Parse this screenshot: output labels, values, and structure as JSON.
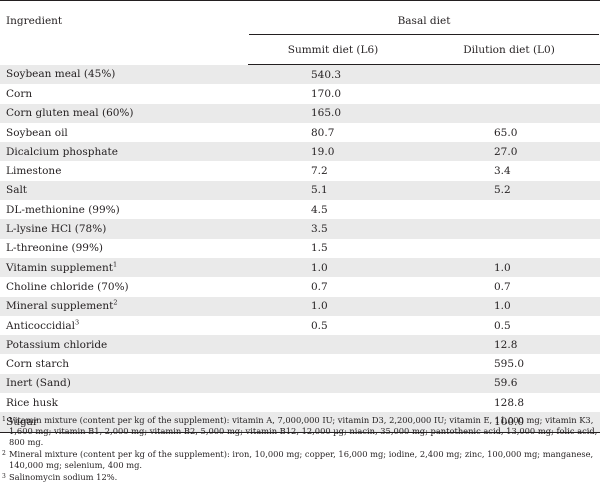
{
  "header": {
    "ingredient": "Ingredient",
    "group": "Basal diet",
    "col_l6": "Summit diet (L6)",
    "col_l0": "Dilution diet (L0)"
  },
  "rows": [
    {
      "ingredient": "Soybean meal (45%)",
      "sup": "",
      "l6": "540.3",
      "l0": ""
    },
    {
      "ingredient": "Corn",
      "sup": "",
      "l6": "170.0",
      "l0": ""
    },
    {
      "ingredient": "Corn gluten meal (60%)",
      "sup": "",
      "l6": "165.0",
      "l0": ""
    },
    {
      "ingredient": "Soybean oil",
      "sup": "",
      "l6": "80.7",
      "l0": "65.0"
    },
    {
      "ingredient": "Dicalcium phosphate",
      "sup": "",
      "l6": "19.0",
      "l0": "27.0"
    },
    {
      "ingredient": "Limestone",
      "sup": "",
      "l6": "7.2",
      "l0": "3.4"
    },
    {
      "ingredient": "Salt",
      "sup": "",
      "l6": "5.1",
      "l0": "5.2"
    },
    {
      "ingredient": "DL-methionine (99%)",
      "sup": "",
      "l6": "4.5",
      "l0": ""
    },
    {
      "ingredient": "L-lysine HCl (78%)",
      "sup": "",
      "l6": "3.5",
      "l0": ""
    },
    {
      "ingredient": "L-threonine (99%)",
      "sup": "",
      "l6": "1.5",
      "l0": ""
    },
    {
      "ingredient": "Vitamin supplement",
      "sup": "1",
      "l6": "1.0",
      "l0": "1.0"
    },
    {
      "ingredient": "Choline chloride (70%)",
      "sup": "",
      "l6": "0.7",
      "l0": "0.7"
    },
    {
      "ingredient": "Mineral supplement",
      "sup": "2",
      "l6": "1.0",
      "l0": "1.0"
    },
    {
      "ingredient": "Anticoccidial",
      "sup": "3",
      "l6": "0.5",
      "l0": "0.5"
    },
    {
      "ingredient": "Potassium chloride",
      "sup": "",
      "l6": "",
      "l0": "12.8"
    },
    {
      "ingredient": "Corn starch",
      "sup": "",
      "l6": "",
      "l0": "595.0"
    },
    {
      "ingredient": "Inert (Sand)",
      "sup": "",
      "l6": "",
      "l0": "59.6"
    },
    {
      "ingredient": "Rice husk",
      "sup": "",
      "l6": "",
      "l0": "128.8"
    },
    {
      "ingredient": "Sugar",
      "sup": "",
      "l6": "",
      "l0": "100.0"
    }
  ],
  "footnotes": [
    {
      "mark": "1",
      "text": "Vitamin mixture (content per kg of the supplement): vitamin A, 7,000,000 IU; vitamin D3, 2,200,000 IU; vitamin E, 11,000 mg; vitamin K3, 1,600 mg; vitamin B1, 2,000 mg; vitamin B2, 5,000 mg; vitamin B12, 12,000 µg; niacin, 35,000 mg; pantothenic acid, 13,000 mg; folic acid, 800 mg."
    },
    {
      "mark": "2",
      "text": "Mineral mixture (content per kg of the supplement): iron, 10,000 mg; copper, 16,000 mg; iodine, 2,400 mg; zinc, 100,000 mg; manganese, 140,000 mg; selenium, 400 mg."
    },
    {
      "mark": "3",
      "text": "Salinomycin sodium 12%."
    }
  ]
}
